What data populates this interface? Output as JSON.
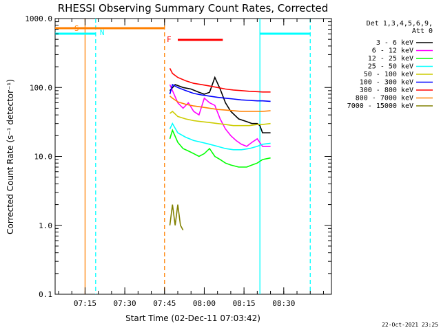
{
  "chart_data": {
    "type": "line",
    "title": "RHESSI Observing Summary Count Rates, Corrected",
    "xlabel": "Start Time (02-Dec-11 07:03:42)",
    "ylabel": "Corrected Count Rate (s⁻¹ detector⁻¹)",
    "y_scale": "log",
    "ylim": [
      0.1,
      1000.0
    ],
    "xlim": [
      "07:03:42",
      "08:48:00"
    ],
    "x_ticks": [
      "07:15",
      "07:30",
      "07:45",
      "08:00",
      "08:15",
      "08:30"
    ],
    "y_ticks": [
      "0.1",
      "1.0",
      "10.0",
      "100.0",
      "1000.0"
    ],
    "legend_header": [
      "Det 1,3,4,5,6,9,",
      "Att 0"
    ],
    "legend_placement": "top-right",
    "footer_timestamp": "22-Oct-2021 23:25",
    "series": [
      {
        "name": "3 - 6 keV",
        "color": "#000000",
        "x": [
          "07:47",
          "07:49",
          "07:52",
          "07:55",
          "07:58",
          "08:00",
          "08:02",
          "08:04",
          "08:06",
          "08:08",
          "08:10",
          "08:13",
          "08:16",
          "08:18",
          "08:20",
          "08:21",
          "08:22",
          "08:25"
        ],
        "y": [
          90,
          110,
          100,
          95,
          85,
          80,
          85,
          140,
          95,
          60,
          45,
          35,
          32,
          30,
          30,
          28,
          22,
          22
        ]
      },
      {
        "name": "6 - 12 keV",
        "color": "#ff00ff",
        "x": [
          "07:47",
          "07:48",
          "07:50",
          "07:52",
          "07:54",
          "07:56",
          "07:58",
          "08:00",
          "08:02",
          "08:04",
          "08:06",
          "08:08",
          "08:10",
          "08:12",
          "08:14",
          "08:16",
          "08:18",
          "08:20",
          "08:22",
          "08:25"
        ],
        "y": [
          110,
          90,
          60,
          50,
          60,
          45,
          40,
          70,
          60,
          55,
          35,
          25,
          20,
          17,
          15,
          14,
          16,
          18,
          14,
          14
        ]
      },
      {
        "name": "12 - 25 keV",
        "color": "#00ff00",
        "x": [
          "07:47",
          "07:48",
          "07:50",
          "07:52",
          "07:54",
          "07:56",
          "07:58",
          "08:00",
          "08:02",
          "08:04",
          "08:06",
          "08:08",
          "08:10",
          "08:13",
          "08:16",
          "08:18",
          "08:20",
          "08:22",
          "08:25"
        ],
        "y": [
          18,
          24,
          16,
          13,
          12,
          11,
          10,
          11,
          13,
          10,
          9,
          8,
          7.5,
          7,
          7,
          7.5,
          8,
          9,
          9.5
        ]
      },
      {
        "name": "25 - 50 keV",
        "color": "#00ffff",
        "x": [
          "07:47",
          "07:48",
          "07:50",
          "07:53",
          "07:56",
          "07:59",
          "08:02",
          "08:05",
          "08:08",
          "08:11",
          "08:14",
          "08:17",
          "08:20",
          "08:22",
          "08:25"
        ],
        "y": [
          25,
          30,
          22,
          19,
          17,
          16,
          15,
          14,
          13,
          12.5,
          12.5,
          13,
          14,
          15,
          15.5
        ]
      },
      {
        "name": "50 - 100 keV",
        "color": "#cccc00",
        "x": [
          "07:47",
          "07:48",
          "07:50",
          "07:53",
          "07:56",
          "07:59",
          "08:02",
          "08:05",
          "08:08",
          "08:11",
          "08:14",
          "08:17",
          "08:20",
          "08:22",
          "08:25"
        ],
        "y": [
          42,
          45,
          38,
          35,
          33,
          32,
          31,
          30,
          29,
          28,
          28,
          28,
          29,
          29,
          30
        ]
      },
      {
        "name": "100 - 300 keV",
        "color": "#0000ff",
        "x": [
          "07:47",
          "07:48",
          "07:50",
          "07:53",
          "07:56",
          "07:59",
          "08:02",
          "08:05",
          "08:08",
          "08:11",
          "08:14",
          "08:17",
          "08:20",
          "08:22",
          "08:25"
        ],
        "y": [
          80,
          110,
          100,
          90,
          82,
          78,
          75,
          72,
          70,
          68,
          66,
          65,
          64,
          64,
          63
        ]
      },
      {
        "name": "300 - 800 keV",
        "color": "#ff0000",
        "x": [
          "07:47",
          "07:48",
          "07:50",
          "07:53",
          "07:56",
          "07:59",
          "08:02",
          "08:05",
          "08:08",
          "08:11",
          "08:14",
          "08:17",
          "08:20",
          "08:22",
          "08:25"
        ],
        "y": [
          190,
          160,
          140,
          125,
          115,
          110,
          105,
          100,
          95,
          92,
          90,
          88,
          87,
          86,
          86
        ]
      },
      {
        "name": "800 - 7000 keV",
        "color": "#ff8000",
        "x": [
          "07:47",
          "07:48",
          "07:50",
          "07:53",
          "07:56",
          "07:59",
          "08:02",
          "08:05",
          "08:08",
          "08:11",
          "08:14",
          "08:17",
          "08:20",
          "08:22",
          "08:25"
        ],
        "y": [
          75,
          70,
          62,
          57,
          54,
          52,
          50,
          48,
          47,
          46,
          45,
          45,
          45,
          45,
          46
        ]
      },
      {
        "name": "7000 - 15000 keV",
        "color": "#808000",
        "x": [
          "07:47",
          "07:48",
          "07:49",
          "07:50",
          "07:51",
          "07:52"
        ],
        "y": [
          1.0,
          2.0,
          1.0,
          2.0,
          1.0,
          0.85
        ]
      }
    ],
    "flag_bars": [
      {
        "label": "S",
        "color": "#ff8000",
        "start": "07:04",
        "end": "07:45"
      },
      {
        "label": "N",
        "color": "#00ffff",
        "start": "07:04",
        "end": "07:19"
      },
      {
        "label": "N",
        "color": "#00ffff",
        "start": "08:21",
        "end": "08:40"
      },
      {
        "label": "F",
        "color": "#ff0000",
        "start": "07:50",
        "end": "08:07"
      }
    ],
    "vertical_markers": [
      {
        "color": "#ff8000",
        "style": "solid",
        "time": "07:15"
      },
      {
        "color": "#ff8000",
        "style": "dashed",
        "time": "07:45"
      },
      {
        "color": "#00ffff",
        "style": "dashed",
        "time": "07:19"
      },
      {
        "color": "#00ffff",
        "style": "solid",
        "time": "08:21"
      },
      {
        "color": "#00ffff",
        "style": "dashed",
        "time": "08:40"
      }
    ]
  }
}
